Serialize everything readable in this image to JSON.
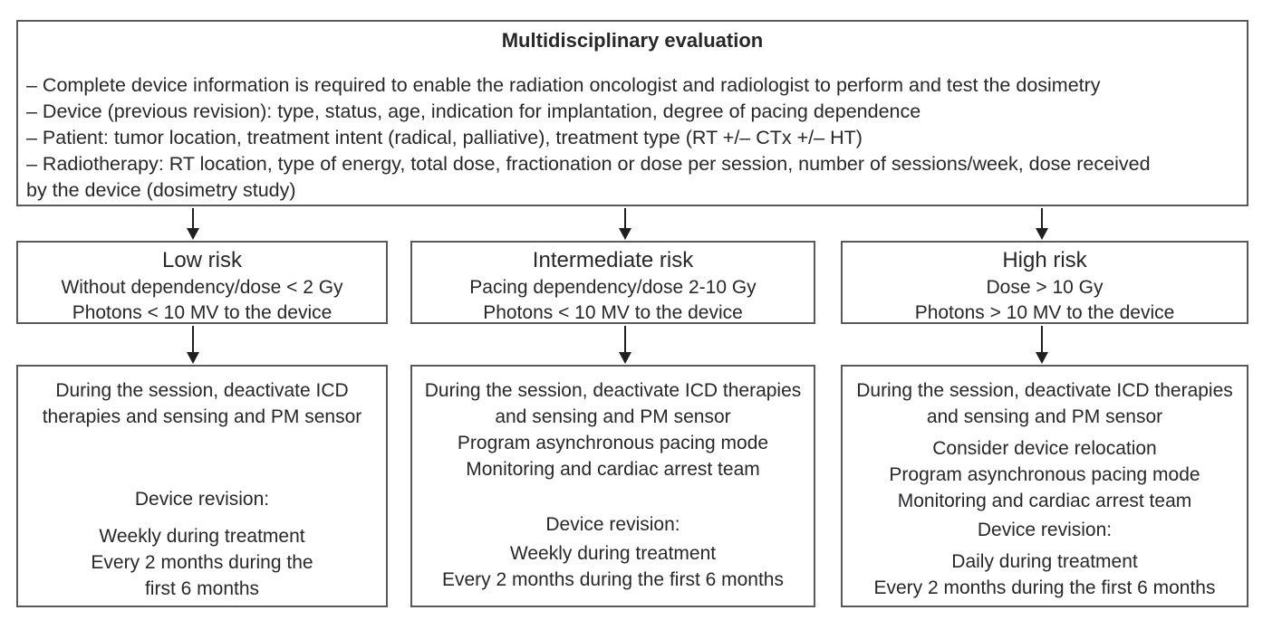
{
  "colors": {
    "background": "#ffffff",
    "box_border": "#58595b",
    "text": "#28282a",
    "arrow": "#1f1f1f"
  },
  "top_box": {
    "title": "Multidisciplinary evaluation",
    "items": [
      "– Complete device information is required to enable the radiation oncologist and radiologist to perform and test the dosimetry",
      "– Device (previous revision): type, status, age, indication for implantation, degree of pacing dependence",
      "– Patient: tumor location, treatment intent (radical, palliative), treatment type (RT +/– CTx +/– HT)",
      "– Radiotherapy: RT location, type of energy, total dose, fractionation or dose per session, number of sessions/week, dose received by the device (dosimetry study)"
    ]
  },
  "columns": [
    {
      "risk": {
        "title": "Low risk",
        "lines": [
          "Without dependency/dose < 2 Gy",
          "Photons < 10 MV to the device"
        ]
      },
      "management": {
        "primary": "During the session, deactivate ICD therapies and sensing and PM sensor",
        "extra_lines": [],
        "revision_label": "Device revision:",
        "revision_lines": [
          "Weekly during treatment",
          "Every 2 months during the",
          "first 6 months"
        ]
      }
    },
    {
      "risk": {
        "title": "Intermediate risk",
        "lines": [
          "Pacing dependency/dose 2-10 Gy",
          "Photons < 10 MV to the device"
        ]
      },
      "management": {
        "primary": "During the session, deactivate ICD therapies and sensing and PM sensor",
        "extra_lines": [
          "Program asynchronous pacing mode",
          "Monitoring and cardiac arrest team"
        ],
        "revision_label": "Device revision:",
        "revision_lines": [
          "Weekly during treatment",
          "Every 2 months during the first 6 months"
        ]
      }
    },
    {
      "risk": {
        "title": "High risk",
        "lines": [
          "Dose > 10 Gy",
          "Photons > 10 MV to the device"
        ]
      },
      "management": {
        "primary": "During the session, deactivate ICD therapies and sensing and PM sensor",
        "extra_lines": [
          "Consider device relocation",
          "Program asynchronous pacing mode",
          "Monitoring and cardiac arrest team"
        ],
        "revision_label": "Device revision:",
        "revision_lines": [
          "Daily during treatment",
          "Every 2 months during the first 6 months"
        ]
      }
    }
  ]
}
